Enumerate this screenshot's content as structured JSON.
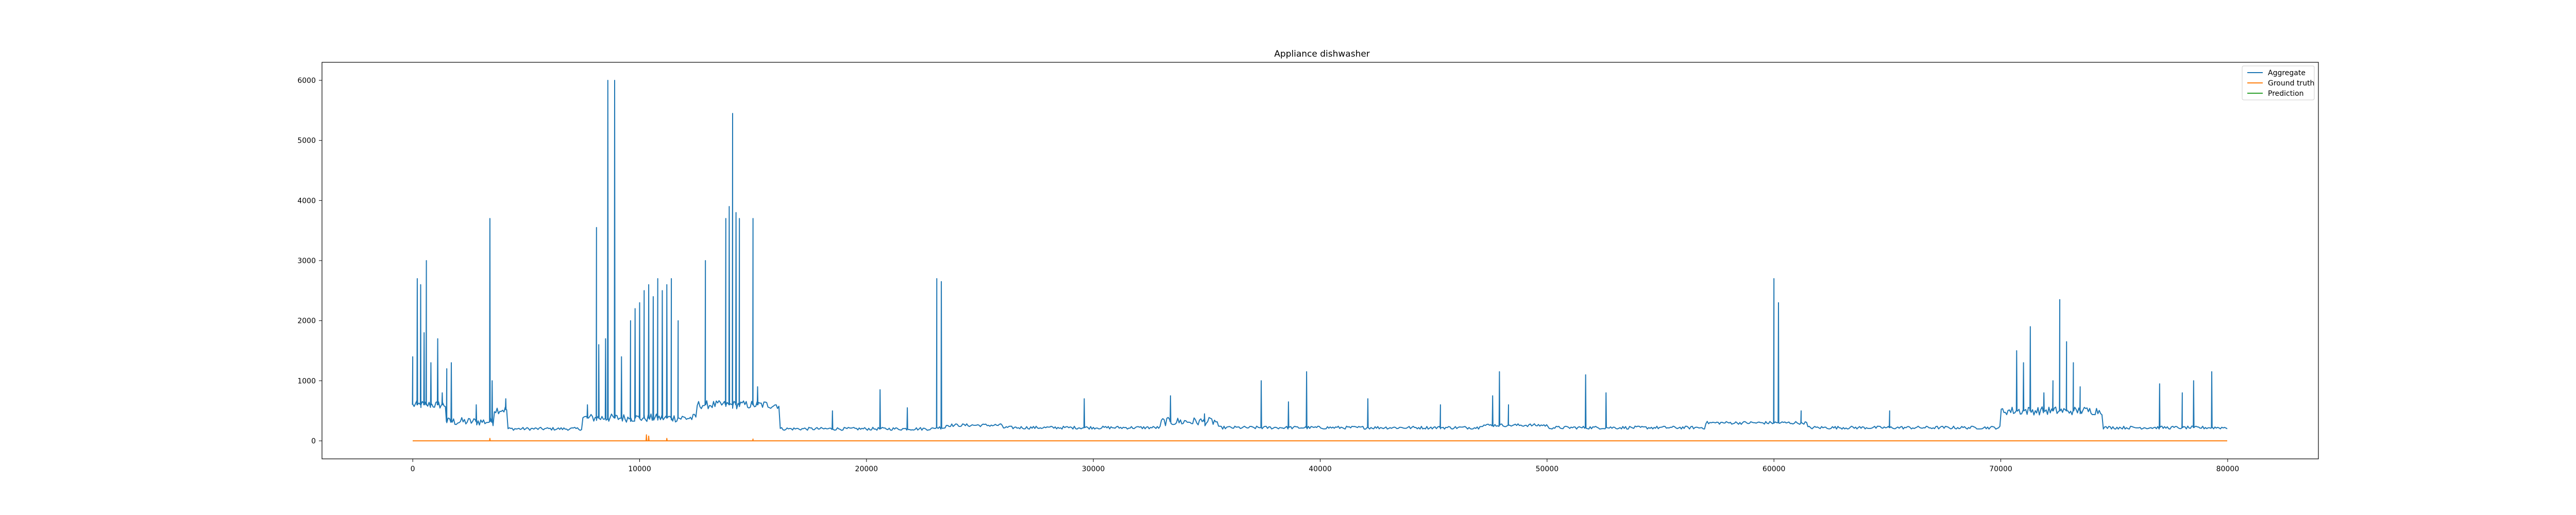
{
  "chart_data": {
    "type": "line",
    "title": "Appliance dishwasher",
    "xlabel": "",
    "ylabel": "",
    "xlim": [
      -4000,
      84000
    ],
    "ylim": [
      -300,
      6300
    ],
    "x_ticks": [
      0,
      10000,
      20000,
      30000,
      40000,
      50000,
      60000,
      70000,
      80000
    ],
    "x_tick_labels": [
      "0",
      "10000",
      "20000",
      "30000",
      "40000",
      "50000",
      "60000",
      "70000",
      "80000"
    ],
    "y_ticks": [
      0,
      1000,
      2000,
      3000,
      4000,
      5000,
      6000
    ],
    "y_tick_labels": [
      "0",
      "1000",
      "2000",
      "3000",
      "4000",
      "5000",
      "6000"
    ],
    "grid": false,
    "legend_position": "top-right",
    "colors": {
      "aggregate": "#1f77b4",
      "ground_truth": "#ff7f0e",
      "prediction": "#2ca02c"
    },
    "series": [
      {
        "name": "Aggregate",
        "color": "#1f77b4",
        "baseline": 220,
        "segments": [
          {
            "from": 0,
            "to": 1500,
            "level": 600
          },
          {
            "from": 1500,
            "to": 3600,
            "level": 320
          },
          {
            "from": 3600,
            "to": 4200,
            "level": 520
          },
          {
            "from": 4200,
            "to": 7500,
            "level": 200
          },
          {
            "from": 7500,
            "to": 12500,
            "level": 380
          },
          {
            "from": 12500,
            "to": 16200,
            "level": 600
          },
          {
            "from": 16200,
            "to": 23000,
            "level": 200
          },
          {
            "from": 23500,
            "to": 26000,
            "level": 260
          },
          {
            "from": 33000,
            "to": 35500,
            "level": 320
          },
          {
            "from": 47000,
            "to": 50000,
            "level": 260
          },
          {
            "from": 57000,
            "to": 61500,
            "level": 300
          },
          {
            "from": 70000,
            "to": 74500,
            "level": 500
          }
        ],
        "spikes": [
          {
            "x": 0,
            "y": 1400
          },
          {
            "x": 200,
            "y": 2700
          },
          {
            "x": 350,
            "y": 2600
          },
          {
            "x": 500,
            "y": 1800
          },
          {
            "x": 600,
            "y": 3000
          },
          {
            "x": 800,
            "y": 1300
          },
          {
            "x": 1100,
            "y": 1700
          },
          {
            "x": 1300,
            "y": 800
          },
          {
            "x": 1500,
            "y": 1200
          },
          {
            "x": 1700,
            "y": 1300
          },
          {
            "x": 2800,
            "y": 600
          },
          {
            "x": 3400,
            "y": 3700
          },
          {
            "x": 3500,
            "y": 1000
          },
          {
            "x": 4100,
            "y": 700
          },
          {
            "x": 7700,
            "y": 600
          },
          {
            "x": 8100,
            "y": 3550
          },
          {
            "x": 8200,
            "y": 1600
          },
          {
            "x": 8500,
            "y": 1700
          },
          {
            "x": 8600,
            "y": 6000
          },
          {
            "x": 8900,
            "y": 6000
          },
          {
            "x": 9200,
            "y": 1400
          },
          {
            "x": 9600,
            "y": 2000
          },
          {
            "x": 9800,
            "y": 2200
          },
          {
            "x": 10000,
            "y": 2300
          },
          {
            "x": 10200,
            "y": 2500
          },
          {
            "x": 10400,
            "y": 2600
          },
          {
            "x": 10600,
            "y": 2400
          },
          {
            "x": 10800,
            "y": 2700
          },
          {
            "x": 11000,
            "y": 2500
          },
          {
            "x": 11200,
            "y": 2600
          },
          {
            "x": 11400,
            "y": 2700
          },
          {
            "x": 11700,
            "y": 2000
          },
          {
            "x": 12900,
            "y": 3000
          },
          {
            "x": 13800,
            "y": 3700
          },
          {
            "x": 13950,
            "y": 3900
          },
          {
            "x": 14100,
            "y": 5450
          },
          {
            "x": 14250,
            "y": 3800
          },
          {
            "x": 14400,
            "y": 3700
          },
          {
            "x": 15000,
            "y": 3700
          },
          {
            "x": 15200,
            "y": 900
          },
          {
            "x": 18500,
            "y": 500
          },
          {
            "x": 20600,
            "y": 850
          },
          {
            "x": 21800,
            "y": 550
          },
          {
            "x": 23100,
            "y": 2700
          },
          {
            "x": 23300,
            "y": 2650
          },
          {
            "x": 29600,
            "y": 700
          },
          {
            "x": 33400,
            "y": 750
          },
          {
            "x": 34900,
            "y": 450
          },
          {
            "x": 37400,
            "y": 1000
          },
          {
            "x": 38600,
            "y": 650
          },
          {
            "x": 39400,
            "y": 1150
          },
          {
            "x": 42100,
            "y": 700
          },
          {
            "x": 45300,
            "y": 600
          },
          {
            "x": 47600,
            "y": 750
          },
          {
            "x": 47900,
            "y": 1150
          },
          {
            "x": 48300,
            "y": 600
          },
          {
            "x": 51700,
            "y": 1100
          },
          {
            "x": 52600,
            "y": 800
          },
          {
            "x": 60000,
            "y": 2700
          },
          {
            "x": 60200,
            "y": 2300
          },
          {
            "x": 61200,
            "y": 500
          },
          {
            "x": 65100,
            "y": 500
          },
          {
            "x": 70700,
            "y": 1500
          },
          {
            "x": 71000,
            "y": 1300
          },
          {
            "x": 71300,
            "y": 1900
          },
          {
            "x": 71900,
            "y": 800
          },
          {
            "x": 72300,
            "y": 1000
          },
          {
            "x": 72600,
            "y": 2350
          },
          {
            "x": 72900,
            "y": 1650
          },
          {
            "x": 73200,
            "y": 1300
          },
          {
            "x": 73500,
            "y": 900
          },
          {
            "x": 77000,
            "y": 950
          },
          {
            "x": 78000,
            "y": 800
          },
          {
            "x": 78500,
            "y": 1000
          },
          {
            "x": 79300,
            "y": 1150
          }
        ],
        "x_end": 80000
      },
      {
        "name": "Ground truth",
        "color": "#ff7f0e",
        "baseline": 0,
        "spikes": [
          {
            "x": 3400,
            "y": 40
          },
          {
            "x": 10300,
            "y": 100
          },
          {
            "x": 10400,
            "y": 80
          },
          {
            "x": 11200,
            "y": 40
          },
          {
            "x": 15000,
            "y": 30
          }
        ],
        "x_end": 80000
      },
      {
        "name": "Prediction",
        "color": "#2ca02c",
        "baseline": 0,
        "spikes": [],
        "x_end": 80000
      }
    ]
  }
}
